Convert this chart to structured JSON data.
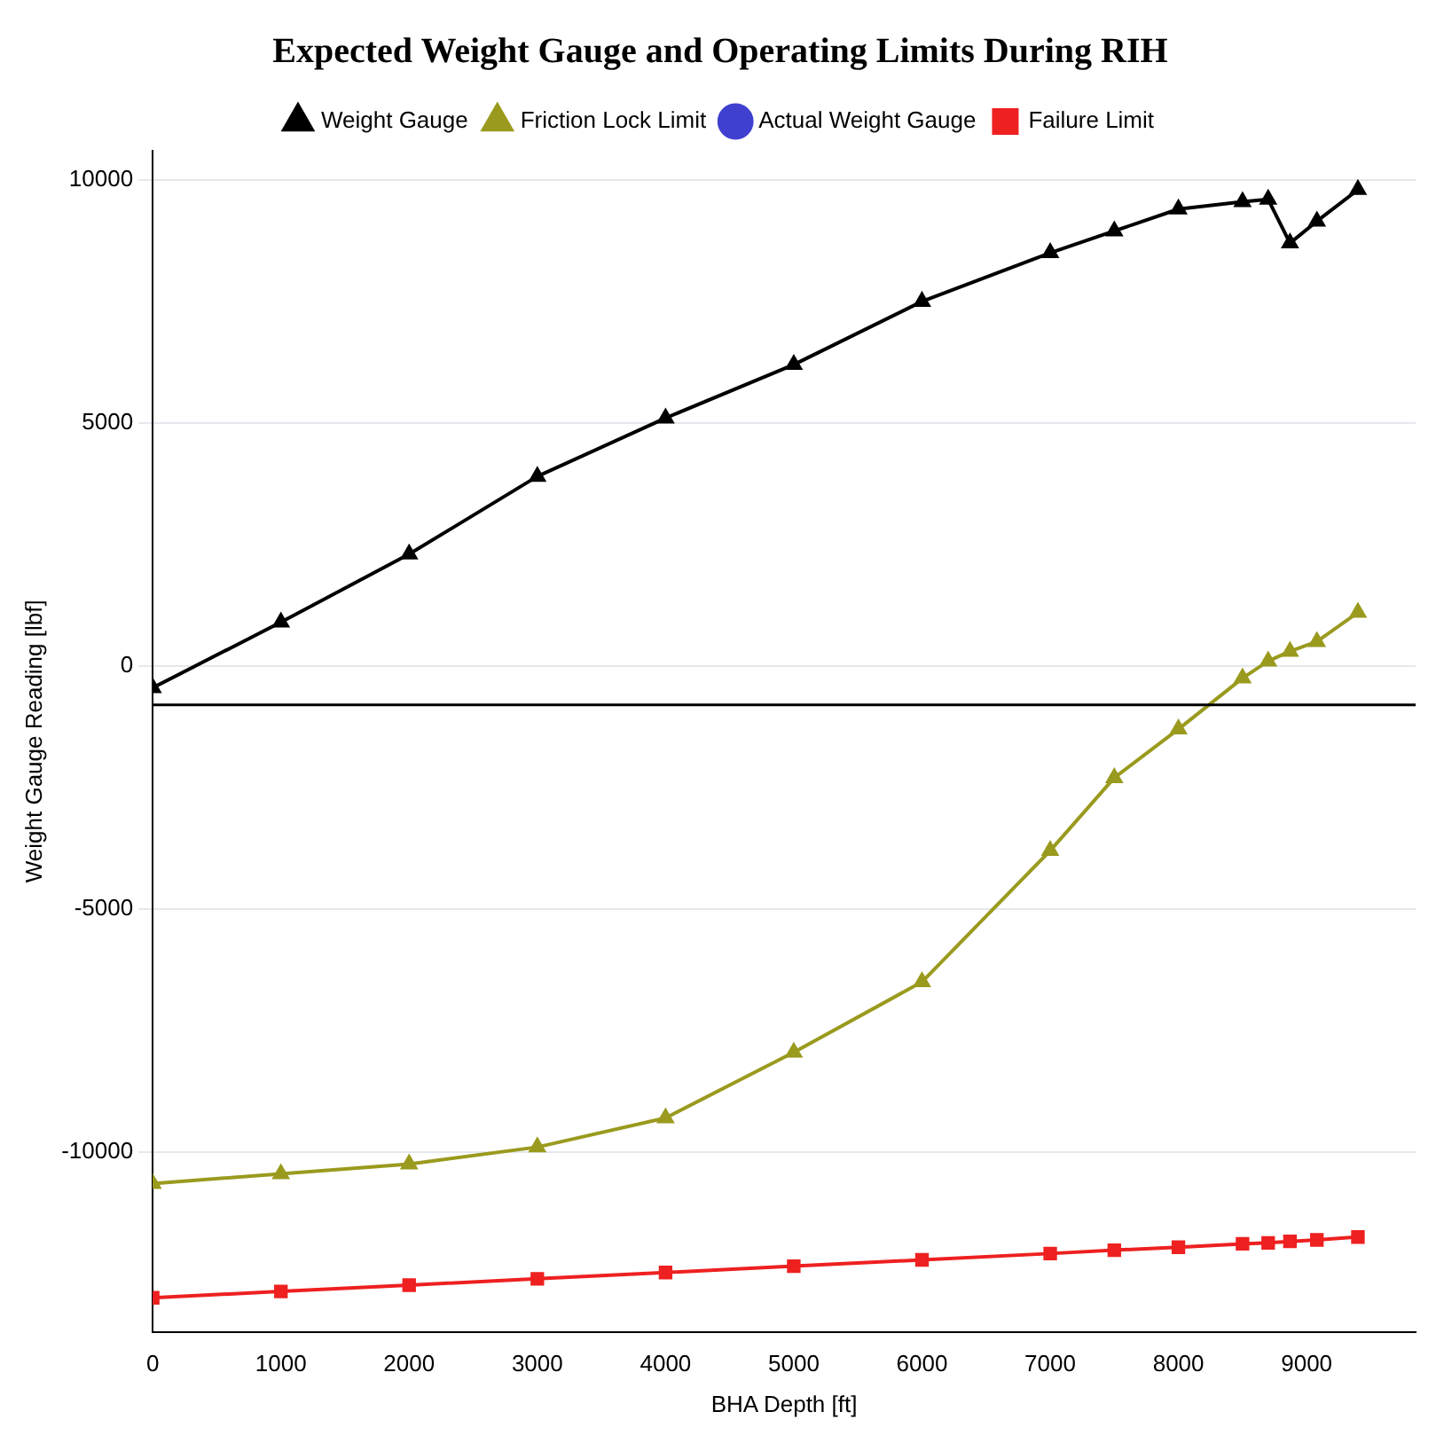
{
  "chart_data": {
    "type": "line",
    "title": "Expected Weight Gauge and Operating Limits During RIH",
    "xlabel": "BHA Depth [ft]",
    "ylabel": "Weight Gauge Reading [lbf]",
    "x": [
      0,
      1000,
      2000,
      3000,
      4000,
      5000,
      6000,
      7000,
      7500,
      8000,
      8500,
      8700,
      8870,
      9080,
      9400
    ],
    "series": [
      {
        "name": "Weight Gauge",
        "color": "#000000",
        "marker": "triangle",
        "values": [
          -450,
          900,
          2300,
          3900,
          5100,
          6200,
          7500,
          8500,
          8950,
          9400,
          9550,
          9600,
          8700,
          9150,
          9800
        ]
      },
      {
        "name": "Friction Lock Limit",
        "color": "#9a9a1e",
        "marker": "triangle",
        "values": [
          -10650,
          -10450,
          -10250,
          -9900,
          -9300,
          -7950,
          -6500,
          -3800,
          -2300,
          -1300,
          -250,
          100,
          300,
          500,
          1100
        ]
      },
      {
        "name": "Actual Weight Gauge",
        "color": "#4040d0",
        "marker": "circle",
        "values": [
          null,
          null,
          null,
          null,
          null,
          null,
          null,
          null,
          null,
          null,
          null,
          null,
          null,
          null,
          null
        ]
      },
      {
        "name": "Failure Limit",
        "color": "#ee2020",
        "marker": "square",
        "values": [
          -13000,
          -12870,
          -12740,
          -12610,
          -12480,
          -12350,
          -12220,
          -12090,
          -12020,
          -11960,
          -11890,
          -11870,
          -11840,
          -11810,
          -11750
        ]
      }
    ],
    "ref_lines": [
      {
        "axis": "y",
        "value": -800,
        "color": "#000000"
      }
    ],
    "xlim": [
      0,
      9850
    ],
    "xticks": [
      0,
      1000,
      2000,
      3000,
      4000,
      5000,
      6000,
      7000,
      8000,
      9000
    ],
    "ylim": [
      -13700,
      10600
    ],
    "yticks": [
      -10000,
      -5000,
      0,
      5000,
      10000
    ],
    "grid": "y",
    "legend": "top"
  }
}
